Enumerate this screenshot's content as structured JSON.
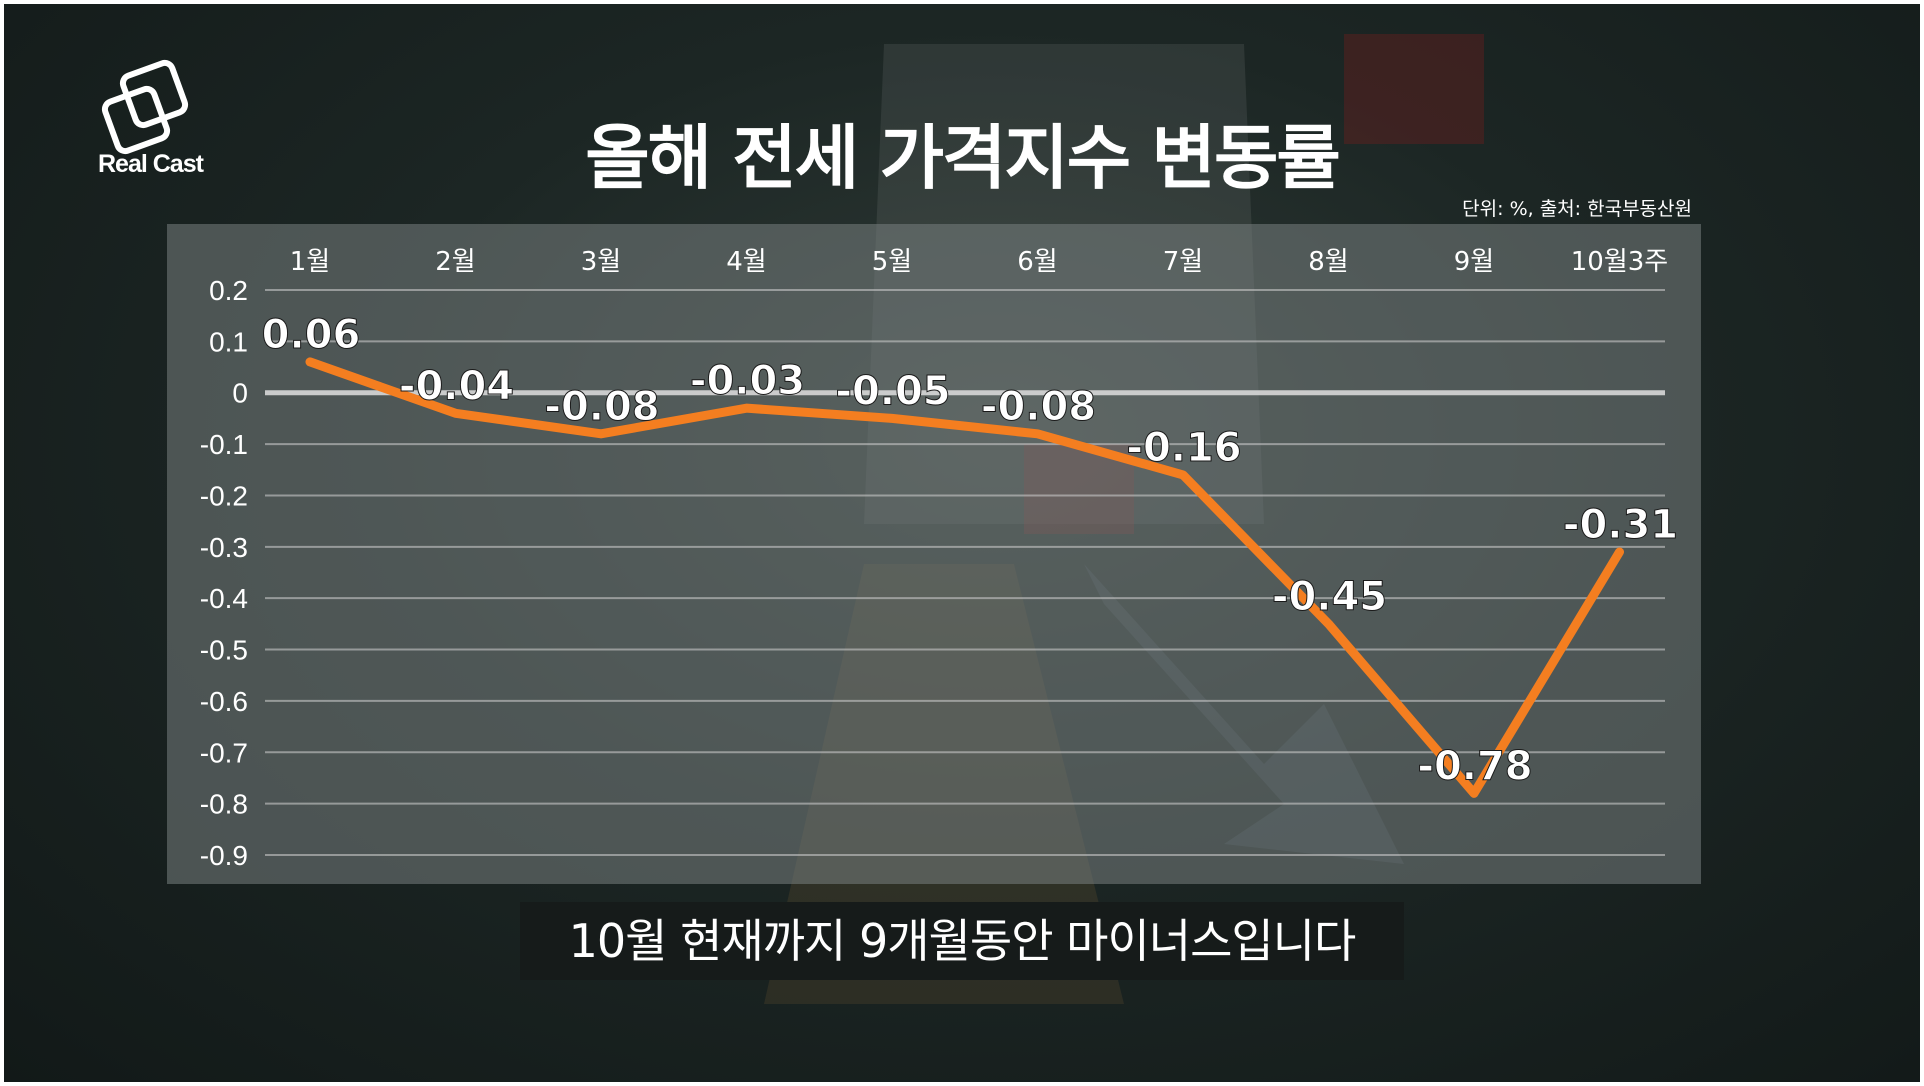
{
  "brand": {
    "logo_text": "Real Cast"
  },
  "header": {
    "title": "올해 전세 가격지수 변동률",
    "source": "단위: %, 출처: 한국부동산원"
  },
  "caption": "10월 현재까지 9개월동안 마이너스입니다",
  "colors": {
    "line": "#f47e20",
    "text": "#ffffff",
    "background": "#1c2624"
  },
  "chart_data": {
    "type": "line",
    "categories": [
      "1월",
      "2월",
      "3월",
      "4월",
      "5월",
      "6월",
      "7월",
      "8월",
      "9월",
      "10월3주"
    ],
    "values": [
      0.06,
      -0.04,
      -0.08,
      -0.03,
      -0.05,
      -0.08,
      -0.16,
      -0.45,
      -0.78,
      -0.31
    ],
    "data_labels": [
      "0.06",
      "-0.04",
      "-0.08",
      "-0.03",
      "-0.05",
      "-0.08",
      "-0.16",
      "-0.45",
      "-0.78",
      "-0.31"
    ],
    "y_ticks": [
      "0.2",
      "0.1",
      "0",
      "-0.1",
      "-0.2",
      "-0.3",
      "-0.4",
      "-0.5",
      "-0.6",
      "-0.7",
      "-0.8",
      "-0.9"
    ],
    "ylim": [
      -0.9,
      0.2
    ],
    "xlabel": "",
    "ylabel": "",
    "grid": true,
    "x_axis_position": "top"
  }
}
